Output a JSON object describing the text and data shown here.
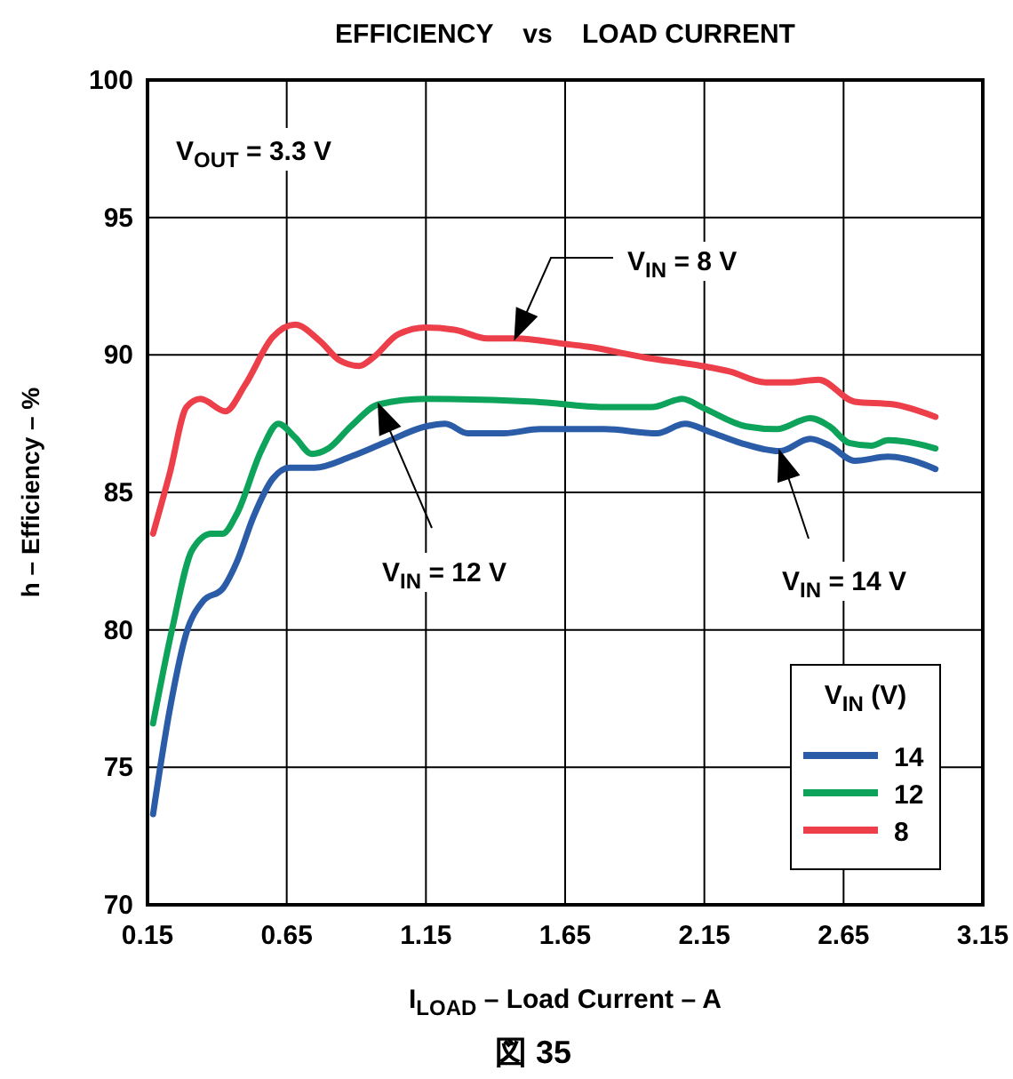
{
  "chart_data": {
    "type": "line",
    "title": "EFFICIENCY    vs    LOAD CURRENT",
    "xlabel": "I$_{LOAD}$ – Load Current – A",
    "ylabel": "h – Efficiency – %",
    "legend_title": "V$_{IN}$ (V)",
    "xlim": [
      0.15,
      3.15
    ],
    "xticks": [
      0.15,
      0.65,
      1.15,
      1.65,
      2.15,
      2.65,
      3.15
    ],
    "ylim": [
      70,
      100
    ],
    "yticks": [
      70,
      75,
      80,
      85,
      90,
      95,
      100
    ],
    "grid": true,
    "legend": "bottom right",
    "line_style": "solid",
    "marker": "none",
    "series": [
      {
        "name": "14",
        "color": "#2b5ca8",
        "x": [
          0.17,
          0.23,
          0.29,
          0.35,
          0.42,
          0.47,
          0.53,
          0.6,
          0.66,
          0.75,
          0.88,
          1.0,
          1.15,
          1.22,
          1.3,
          1.43,
          1.56,
          1.79,
          1.98,
          2.08,
          2.17,
          2.28,
          2.42,
          2.53,
          2.6,
          2.69,
          2.81,
          2.9,
          2.98
        ],
        "values": [
          73.3,
          77.1,
          79.9,
          81.05,
          81.5,
          82.45,
          84.1,
          85.5,
          85.9,
          85.9,
          86.3,
          86.8,
          87.4,
          87.5,
          87.15,
          87.15,
          87.3,
          87.3,
          87.15,
          87.5,
          87.2,
          86.8,
          86.5,
          86.95,
          86.7,
          86.15,
          86.3,
          86.15,
          85.85
        ]
      },
      {
        "name": "12",
        "color": "#0ea35a",
        "x": [
          0.17,
          0.24,
          0.31,
          0.38,
          0.42,
          0.47,
          0.56,
          0.62,
          0.68,
          0.74,
          0.8,
          0.88,
          0.98,
          1.15,
          1.54,
          1.79,
          1.96,
          2.07,
          2.15,
          2.3,
          2.41,
          2.53,
          2.6,
          2.67,
          2.75,
          2.81,
          2.9,
          2.98
        ],
        "values": [
          76.6,
          80.1,
          82.9,
          83.5,
          83.5,
          84.2,
          86.55,
          87.5,
          87.0,
          86.4,
          86.6,
          87.4,
          88.2,
          88.4,
          88.3,
          88.1,
          88.1,
          88.4,
          88.05,
          87.4,
          87.3,
          87.7,
          87.4,
          86.8,
          86.7,
          86.9,
          86.8,
          86.6
        ]
      },
      {
        "name": "8",
        "color": "#ec3f4a",
        "x": [
          0.17,
          0.23,
          0.29,
          0.34,
          0.43,
          0.5,
          0.6,
          0.68,
          0.77,
          0.84,
          0.91,
          0.96,
          1.05,
          1.15,
          1.26,
          1.37,
          1.47,
          1.65,
          1.73,
          1.94,
          2.14,
          2.24,
          2.37,
          2.45,
          2.56,
          2.69,
          2.83,
          2.98
        ],
        "values": [
          83.5,
          85.7,
          88.1,
          88.4,
          87.95,
          88.9,
          90.65,
          91.1,
          90.5,
          89.8,
          89.6,
          89.9,
          90.75,
          91.0,
          90.9,
          90.6,
          90.6,
          90.4,
          90.3,
          89.9,
          89.6,
          89.4,
          89.0,
          89.0,
          89.1,
          88.3,
          88.2,
          87.75
        ]
      }
    ],
    "annotations": [
      "V$_{OUT}$= 3.3 V",
      {
        "text": "V$_{IN}$ = 8 V",
        "x": 1.47,
        "y": 90.6
      },
      {
        "text": "V$_{IN}$ = 12 V",
        "x": 0.98,
        "y": 88.2
      },
      {
        "text": "V$_{IN}$ = 14 V",
        "x": 2.42,
        "y": 86.5
      },
      "図 35"
    ]
  }
}
